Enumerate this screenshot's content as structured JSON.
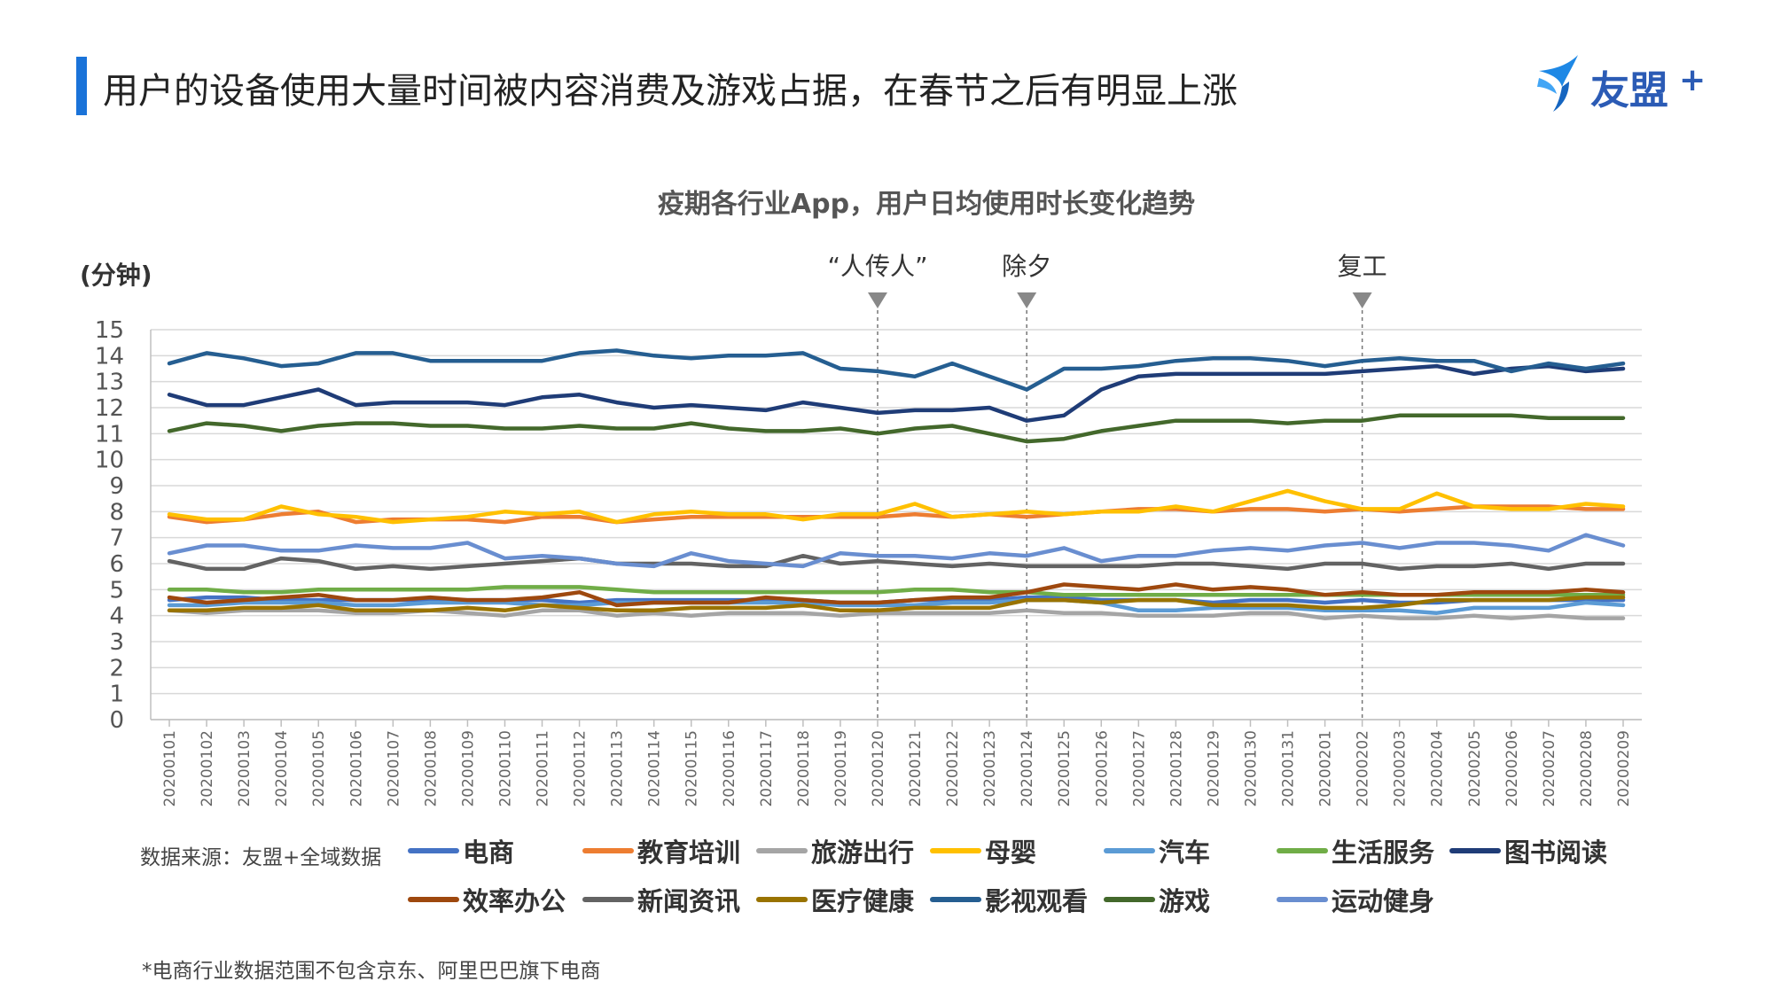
{
  "page": {
    "title": "用户的设备使用大量时间被内容消费及游戏占据，在春节之后有明显上涨",
    "logo_text": "友盟",
    "logo_plus": "+",
    "source": "数据来源：友盟+全域数据",
    "footnote": "*电商行业数据范围不包含京东、阿里巴巴旗下电商"
  },
  "chart_data": {
    "type": "line",
    "title": "疫期各行业App，用户日均使用时长变化趋势",
    "ylabel": "(分钟)",
    "xlabel": "",
    "ylim": [
      0,
      15
    ],
    "yticks": [
      0,
      1,
      2,
      3,
      4,
      5,
      6,
      7,
      8,
      9,
      10,
      11,
      12,
      13,
      14,
      15
    ],
    "grid": true,
    "legend_position": "bottom",
    "categories": [
      "20200101",
      "20200102",
      "20200103",
      "20200104",
      "20200105",
      "20200106",
      "20200107",
      "20200108",
      "20200109",
      "20200110",
      "20200111",
      "20200112",
      "20200113",
      "20200114",
      "20200115",
      "20200116",
      "20200117",
      "20200118",
      "20200119",
      "20200120",
      "20200121",
      "20200122",
      "20200123",
      "20200124",
      "20200125",
      "20200126",
      "20200127",
      "20200128",
      "20200129",
      "20200130",
      "20200131",
      "20200201",
      "20200202",
      "20200203",
      "20200204",
      "20200205",
      "20200206",
      "20200207",
      "20200208",
      "20200209"
    ],
    "annotations": [
      {
        "label": "“人传人”",
        "x": "20200120"
      },
      {
        "label": "除夕",
        "x": "20200124"
      },
      {
        "label": "复工",
        "x": "20200202"
      }
    ],
    "series": [
      {
        "name": "电商",
        "color": "#4472c4",
        "values": [
          4.6,
          4.7,
          4.7,
          4.6,
          4.6,
          4.6,
          4.6,
          4.6,
          4.6,
          4.6,
          4.6,
          4.5,
          4.6,
          4.6,
          4.6,
          4.6,
          4.6,
          4.6,
          4.5,
          4.5,
          4.6,
          4.6,
          4.6,
          4.7,
          4.7,
          4.6,
          4.6,
          4.6,
          4.5,
          4.6,
          4.6,
          4.5,
          4.6,
          4.5,
          4.5,
          4.6,
          4.6,
          4.6,
          4.6,
          4.6
        ]
      },
      {
        "name": "教育培训",
        "color": "#ed7d31",
        "values": [
          7.8,
          7.6,
          7.7,
          7.9,
          8.0,
          7.6,
          7.7,
          7.7,
          7.7,
          7.6,
          7.8,
          7.8,
          7.6,
          7.7,
          7.8,
          7.8,
          7.8,
          7.8,
          7.8,
          7.8,
          7.9,
          7.8,
          7.9,
          7.8,
          7.9,
          8.0,
          8.1,
          8.1,
          8.0,
          8.1,
          8.1,
          8.0,
          8.1,
          8.0,
          8.1,
          8.2,
          8.2,
          8.2,
          8.1,
          8.1
        ]
      },
      {
        "name": "旅游出行",
        "color": "#a5a5a5",
        "values": [
          4.2,
          4.1,
          4.2,
          4.2,
          4.2,
          4.1,
          4.1,
          4.2,
          4.1,
          4.0,
          4.2,
          4.2,
          4.0,
          4.1,
          4.0,
          4.1,
          4.1,
          4.1,
          4.0,
          4.1,
          4.1,
          4.1,
          4.1,
          4.2,
          4.1,
          4.1,
          4.0,
          4.0,
          4.0,
          4.1,
          4.1,
          3.9,
          4.0,
          3.9,
          3.9,
          4.0,
          3.9,
          4.0,
          3.9,
          3.9
        ]
      },
      {
        "name": "母婴",
        "color": "#ffc000",
        "values": [
          7.9,
          7.7,
          7.7,
          8.2,
          7.9,
          7.8,
          7.6,
          7.7,
          7.8,
          8.0,
          7.9,
          8.0,
          7.6,
          7.9,
          8.0,
          7.9,
          7.9,
          7.7,
          7.9,
          7.9,
          8.3,
          7.8,
          7.9,
          8.0,
          7.9,
          8.0,
          8.0,
          8.2,
          8.0,
          8.4,
          8.8,
          8.4,
          8.1,
          8.1,
          8.7,
          8.2,
          8.1,
          8.1,
          8.3,
          8.2
        ]
      },
      {
        "name": "汽车",
        "color": "#5b9bd5",
        "values": [
          4.4,
          4.4,
          4.5,
          4.5,
          4.5,
          4.4,
          4.4,
          4.5,
          4.5,
          4.5,
          4.4,
          4.4,
          4.5,
          4.5,
          4.5,
          4.5,
          4.5,
          4.5,
          4.4,
          4.4,
          4.4,
          4.5,
          4.5,
          4.6,
          4.6,
          4.5,
          4.2,
          4.2,
          4.3,
          4.3,
          4.3,
          4.2,
          4.2,
          4.2,
          4.1,
          4.3,
          4.3,
          4.3,
          4.5,
          4.4
        ]
      },
      {
        "name": "生活服务",
        "color": "#70ad47",
        "values": [
          5.0,
          5.0,
          4.9,
          4.9,
          5.0,
          5.0,
          5.0,
          5.0,
          5.0,
          5.1,
          5.1,
          5.1,
          5.0,
          4.9,
          4.9,
          4.9,
          4.9,
          4.9,
          4.9,
          4.9,
          5.0,
          5.0,
          4.9,
          4.9,
          4.8,
          4.8,
          4.8,
          4.8,
          4.8,
          4.8,
          4.8,
          4.8,
          4.8,
          4.8,
          4.8,
          4.8,
          4.8,
          4.8,
          4.8,
          4.8
        ]
      },
      {
        "name": "图书阅读",
        "color": "#1f3c77",
        "values": [
          12.5,
          12.1,
          12.1,
          12.4,
          12.7,
          12.1,
          12.2,
          12.2,
          12.2,
          12.1,
          12.4,
          12.5,
          12.2,
          12.0,
          12.1,
          12.0,
          11.9,
          12.2,
          12.0,
          11.8,
          11.9,
          11.9,
          12.0,
          11.5,
          11.7,
          12.7,
          13.2,
          13.3,
          13.3,
          13.3,
          13.3,
          13.3,
          13.4,
          13.5,
          13.6,
          13.3,
          13.5,
          13.6,
          13.4,
          13.5
        ]
      },
      {
        "name": "效率办公",
        "color": "#9e480e",
        "values": [
          4.7,
          4.5,
          4.6,
          4.7,
          4.8,
          4.6,
          4.6,
          4.7,
          4.6,
          4.6,
          4.7,
          4.9,
          4.4,
          4.5,
          4.5,
          4.5,
          4.7,
          4.6,
          4.5,
          4.5,
          4.6,
          4.7,
          4.7,
          4.9,
          5.2,
          5.1,
          5.0,
          5.2,
          5.0,
          5.1,
          5.0,
          4.8,
          4.9,
          4.8,
          4.8,
          4.9,
          4.9,
          4.9,
          5.0,
          4.9
        ]
      },
      {
        "name": "新闻资讯",
        "color": "#636363",
        "values": [
          6.1,
          5.8,
          5.8,
          6.2,
          6.1,
          5.8,
          5.9,
          5.8,
          5.9,
          6.0,
          6.1,
          6.2,
          6.0,
          6.0,
          6.0,
          5.9,
          5.9,
          6.3,
          6.0,
          6.1,
          6.0,
          5.9,
          6.0,
          5.9,
          5.9,
          5.9,
          5.9,
          6.0,
          6.0,
          5.9,
          5.8,
          6.0,
          6.0,
          5.8,
          5.9,
          5.9,
          6.0,
          5.8,
          6.0,
          6.0
        ]
      },
      {
        "name": "医疗健康",
        "color": "#997300",
        "values": [
          4.2,
          4.2,
          4.3,
          4.3,
          4.4,
          4.2,
          4.2,
          4.2,
          4.3,
          4.2,
          4.4,
          4.3,
          4.2,
          4.2,
          4.3,
          4.3,
          4.3,
          4.4,
          4.2,
          4.2,
          4.3,
          4.3,
          4.3,
          4.6,
          4.6,
          4.5,
          4.6,
          4.6,
          4.4,
          4.4,
          4.4,
          4.3,
          4.3,
          4.4,
          4.6,
          4.6,
          4.6,
          4.6,
          4.7,
          4.7
        ]
      },
      {
        "name": "影视观看",
        "color": "#255e91",
        "values": [
          13.7,
          14.1,
          13.9,
          13.6,
          13.7,
          14.1,
          14.1,
          13.8,
          13.8,
          13.8,
          13.8,
          14.1,
          14.2,
          14.0,
          13.9,
          14.0,
          14.0,
          14.1,
          13.5,
          13.4,
          13.2,
          13.7,
          13.2,
          12.7,
          13.5,
          13.5,
          13.6,
          13.8,
          13.9,
          13.9,
          13.8,
          13.6,
          13.8,
          13.9,
          13.8,
          13.8,
          13.4,
          13.7,
          13.5,
          13.7
        ]
      },
      {
        "name": "游戏",
        "color": "#43682b",
        "values": [
          11.1,
          11.4,
          11.3,
          11.1,
          11.3,
          11.4,
          11.4,
          11.3,
          11.3,
          11.2,
          11.2,
          11.3,
          11.2,
          11.2,
          11.4,
          11.2,
          11.1,
          11.1,
          11.2,
          11.0,
          11.2,
          11.3,
          11.0,
          10.7,
          10.8,
          11.1,
          11.3,
          11.5,
          11.5,
          11.5,
          11.4,
          11.5,
          11.5,
          11.7,
          11.7,
          11.7,
          11.7,
          11.6,
          11.6,
          11.6
        ]
      },
      {
        "name": "运动健身",
        "color": "#698ed0",
        "values": [
          6.4,
          6.7,
          6.7,
          6.5,
          6.5,
          6.7,
          6.6,
          6.6,
          6.8,
          6.2,
          6.3,
          6.2,
          6.0,
          5.9,
          6.4,
          6.1,
          6.0,
          5.9,
          6.4,
          6.3,
          6.3,
          6.2,
          6.4,
          6.3,
          6.6,
          6.1,
          6.3,
          6.3,
          6.5,
          6.6,
          6.5,
          6.7,
          6.8,
          6.6,
          6.8,
          6.8,
          6.7,
          6.5,
          7.1,
          6.7
        ]
      }
    ]
  }
}
